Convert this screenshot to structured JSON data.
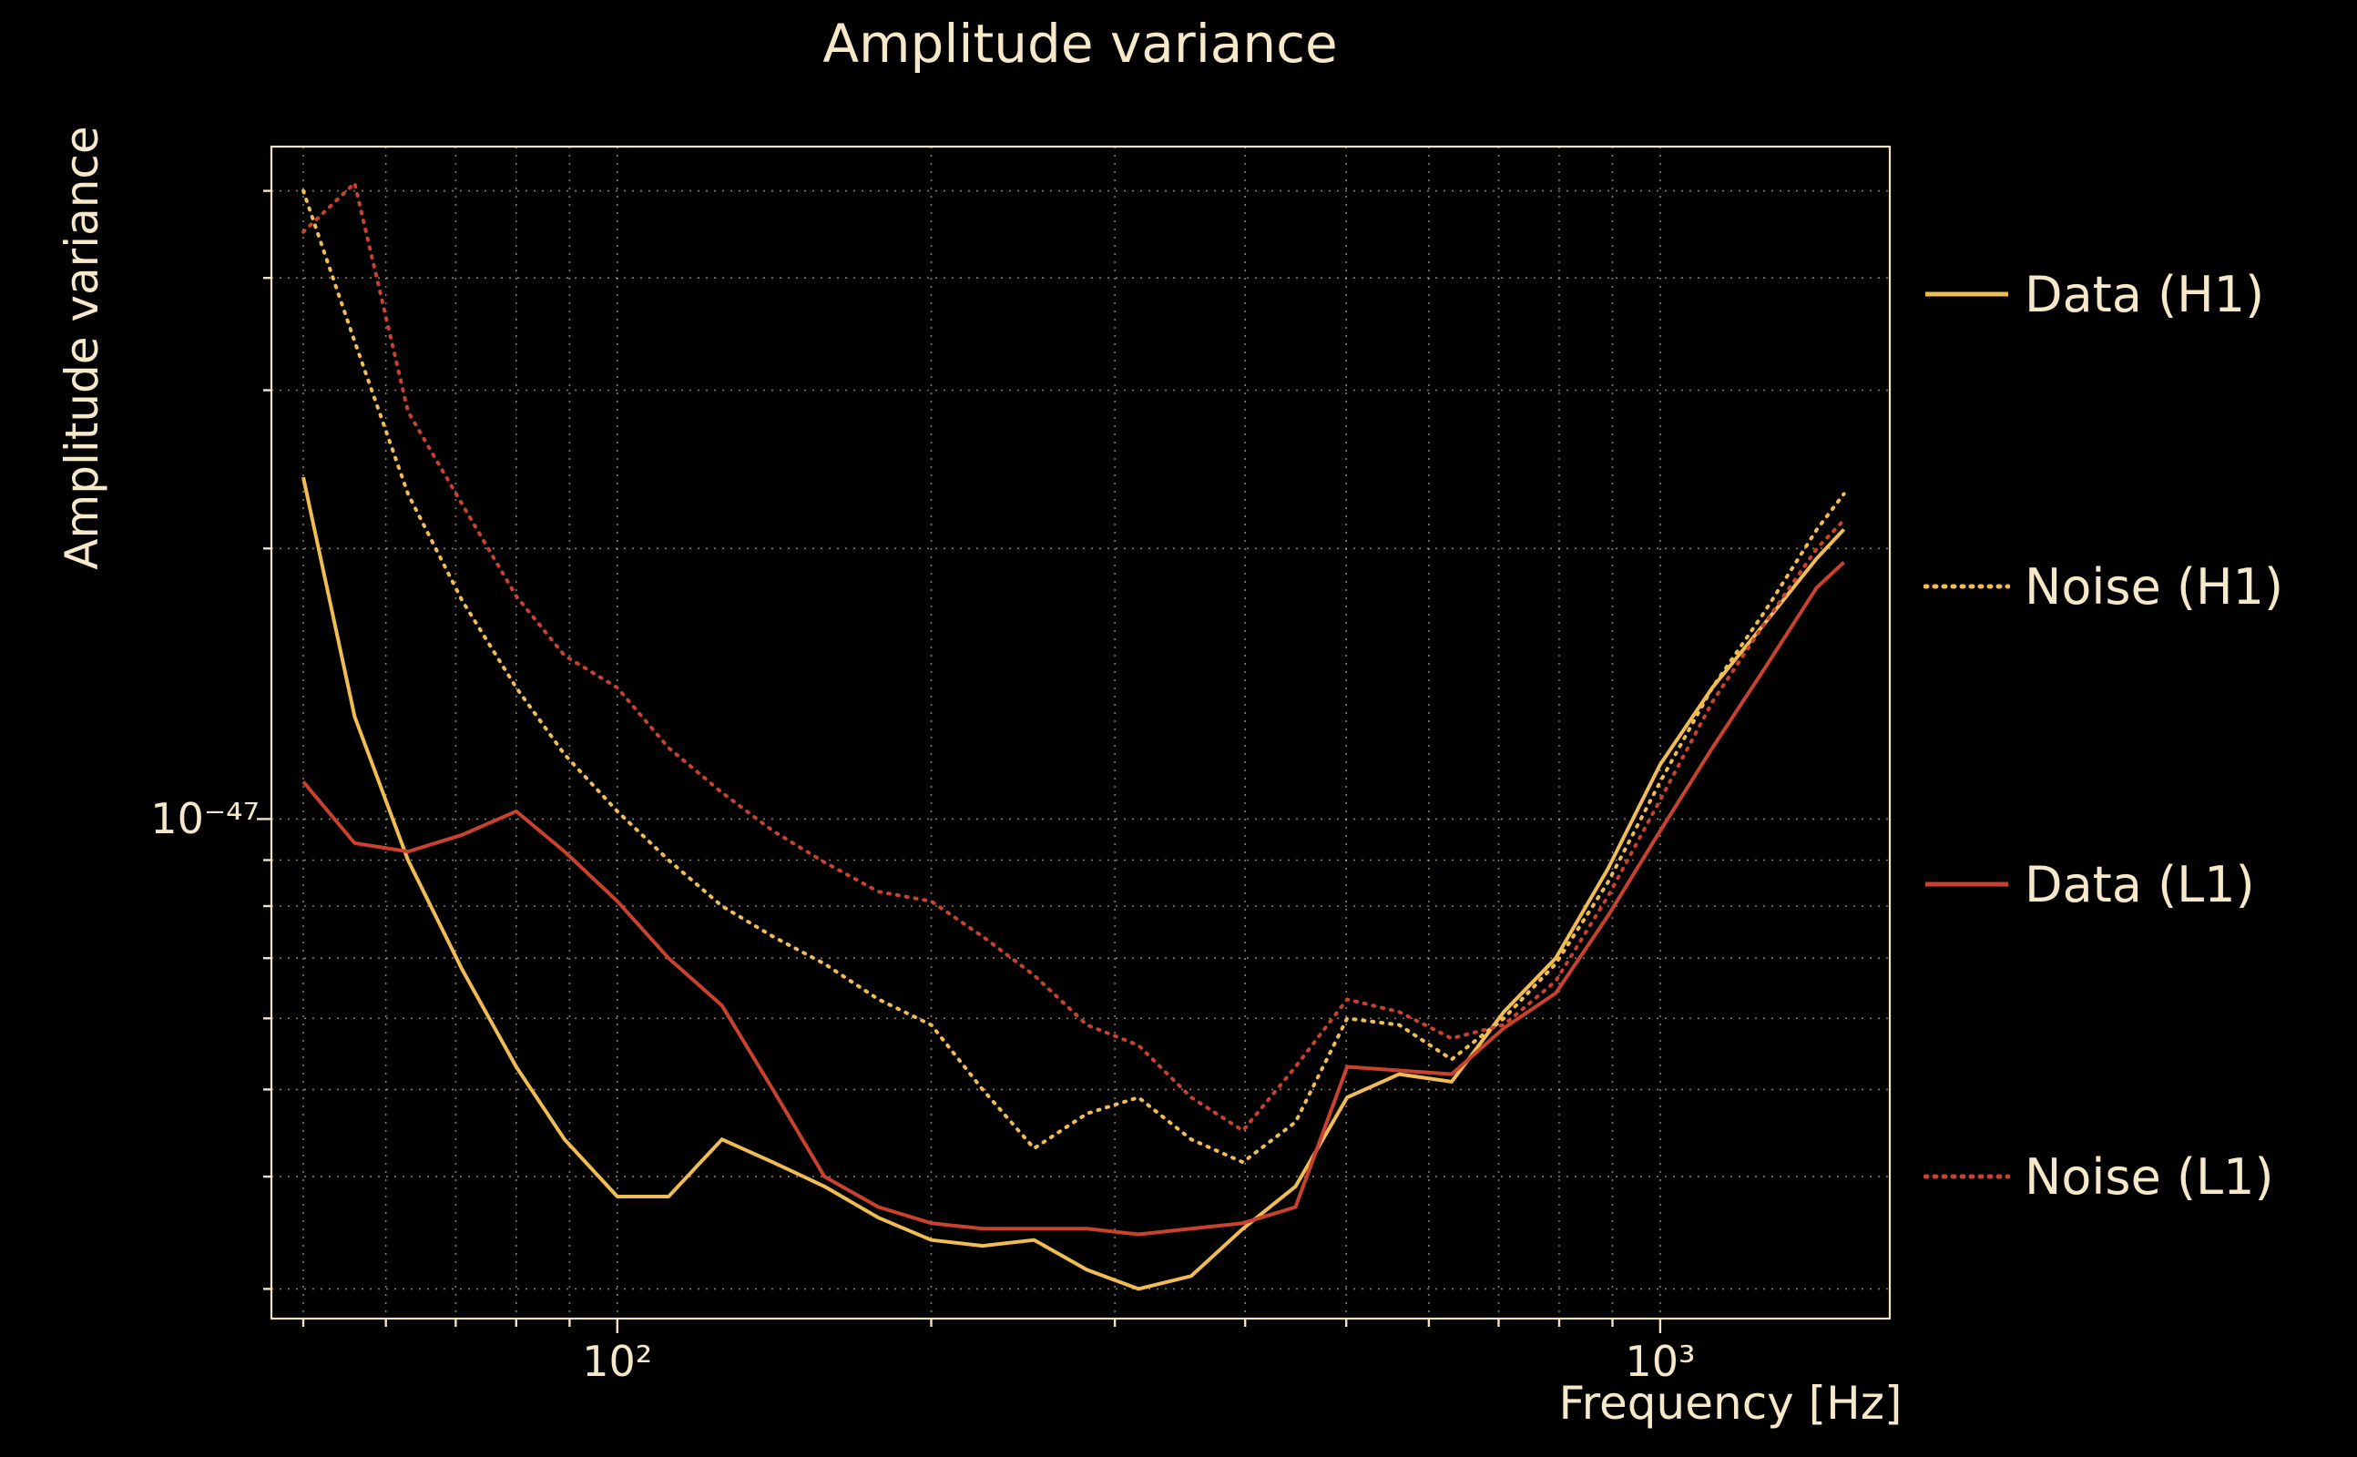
{
  "page": {
    "background": "#000000",
    "text_color": "#f6e8c8"
  },
  "chart_data": {
    "type": "line",
    "title": "Amplitude variance",
    "xlabel": "Frequency [Hz]",
    "ylabel": "Amplitude variance",
    "xscale": "log",
    "yscale": "log",
    "xlim": [
      46.6,
      1660
    ],
    "ylim": [
      2.78e-48,
      5.6e-47
    ],
    "grid": true,
    "legend_position": "right-outside",
    "x_ticks": [
      {
        "value": 100,
        "label": "10²"
      },
      {
        "value": 1000,
        "label": "10³"
      }
    ],
    "y_ticks": [
      {
        "value": 1e-47,
        "label": "10⁻⁴⁷"
      }
    ],
    "x_gridlines": [
      50,
      60,
      70,
      80,
      90,
      100,
      200,
      300,
      400,
      500,
      600,
      700,
      800,
      900,
      1000
    ],
    "y_gridlines": [
      3e-48,
      4e-48,
      5e-48,
      6e-48,
      7e-48,
      8e-48,
      9e-48,
      1e-47,
      2e-47,
      3e-47,
      4e-47,
      5e-47
    ],
    "x_major": [
      100,
      1000
    ],
    "y_major": [
      1e-47
    ],
    "x": [
      50,
      56,
      63,
      71,
      80,
      89,
      100,
      112,
      126,
      141,
      158,
      178,
      200,
      224,
      251,
      282,
      316,
      355,
      398,
      447,
      501,
      562,
      631,
      708,
      794,
      891,
      1000,
      1122,
      1259,
      1413,
      1500
    ],
    "series": [
      {
        "name": "Data (H1)",
        "color": "#f0bc54",
        "style": "solid",
        "values": [
          2.4e-47,
          1.3e-47,
          9e-48,
          6.8e-48,
          5.3e-48,
          4.4e-48,
          3.8e-48,
          3.8e-48,
          4.4e-48,
          4.15e-48,
          3.9e-48,
          3.6e-48,
          3.4e-48,
          3.35e-48,
          3.4e-48,
          3.15e-48,
          3e-48,
          3.1e-48,
          3.5e-48,
          3.9e-48,
          4.9e-48,
          5.2e-48,
          5.1e-48,
          6.1e-48,
          7e-48,
          8.8e-48,
          1.15e-47,
          1.4e-47,
          1.65e-47,
          1.95e-47,
          2.1e-47
        ]
      },
      {
        "name": "Noise (H1)",
        "color": "#f0bc54",
        "style": "dotted",
        "values": [
          5e-47,
          3.4e-47,
          2.3e-47,
          1.75e-47,
          1.4e-47,
          1.18e-47,
          1.02e-47,
          9e-48,
          8e-48,
          7.4e-48,
          6.9e-48,
          6.3e-48,
          5.9e-48,
          5e-48,
          4.3e-48,
          4.7e-48,
          4.9e-48,
          4.4e-48,
          4.15e-48,
          4.6e-48,
          6e-48,
          5.9e-48,
          5.4e-48,
          6e-48,
          6.9e-48,
          8.5e-48,
          1.1e-47,
          1.4e-47,
          1.7e-47,
          2.1e-47,
          2.3e-47
        ]
      },
      {
        "name": "Data (L1)",
        "color": "#c9412f",
        "style": "solid",
        "values": [
          1.1e-47,
          9.4e-48,
          9.2e-48,
          9.6e-48,
          1.02e-47,
          9.2e-48,
          8.1e-48,
          7e-48,
          6.2e-48,
          5e-48,
          4e-48,
          3.7e-48,
          3.55e-48,
          3.5e-48,
          3.5e-48,
          3.5e-48,
          3.45e-48,
          3.5e-48,
          3.55e-48,
          3.7e-48,
          5.3e-48,
          5.25e-48,
          5.2e-48,
          5.85e-48,
          6.4e-48,
          7.8e-48,
          9.7e-48,
          1.2e-47,
          1.47e-47,
          1.81e-47,
          1.93e-47
        ]
      },
      {
        "name": "Noise (L1)",
        "color": "#c9412f",
        "style": "dotted",
        "values": [
          4.5e-47,
          5.1e-47,
          2.84e-47,
          2.24e-47,
          1.77e-47,
          1.52e-47,
          1.4e-47,
          1.2e-47,
          1.07e-47,
          9.7e-48,
          8.95e-48,
          8.3e-48,
          8.1e-48,
          7.4e-48,
          6.7e-48,
          5.9e-48,
          5.6e-48,
          4.9e-48,
          4.5e-48,
          5.3e-48,
          6.3e-48,
          6.1e-48,
          5.7e-48,
          5.9e-48,
          6.6e-48,
          8.2e-48,
          1.05e-47,
          1.35e-47,
          1.65e-47,
          2e-47,
          2.15e-47
        ]
      }
    ]
  }
}
